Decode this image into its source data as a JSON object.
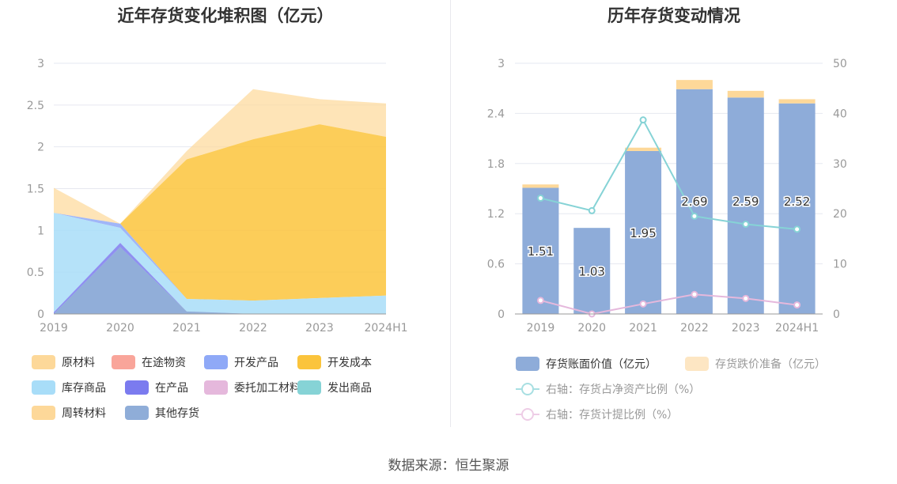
{
  "source": "数据来源：恒生聚源",
  "chart_data": [
    {
      "type": "area",
      "title": "近年存货变化堆积图（亿元）",
      "categories": [
        "2019",
        "2020",
        "2021",
        "2022",
        "2023",
        "2024H1"
      ],
      "y_ticks": [
        "0",
        "0.5",
        "1",
        "1.5",
        "2",
        "2.5",
        "3"
      ],
      "ylim": [
        0,
        3
      ],
      "stacked": true,
      "series": [
        {
          "name": "原材料",
          "color": "#fdd899",
          "values": [
            0.3,
            0.0,
            0.1,
            0.6,
            0.3,
            0.4
          ]
        },
        {
          "name": "在途物资",
          "color": "#f9a59a",
          "values": [
            0,
            0,
            0,
            0,
            0,
            0
          ]
        },
        {
          "name": "开发产品",
          "color": "#8fa9f7",
          "values": [
            0.0,
            0.05,
            0.0,
            0.0,
            0.0,
            0.0
          ]
        },
        {
          "name": "开发成本",
          "color": "#fbc43c",
          "values": [
            0.0,
            0.0,
            1.67,
            1.93,
            2.08,
            1.9
          ]
        },
        {
          "name": "库存商品",
          "color": "#a8ddf8",
          "values": [
            1.19,
            0.18,
            0.15,
            0.16,
            0.19,
            0.22
          ]
        },
        {
          "name": "在产品",
          "color": "#7b7bef",
          "values": [
            0.02,
            0.05,
            0.0,
            0.0,
            0.0,
            0.0
          ]
        },
        {
          "name": "委托加工材料",
          "color": "#e5b8dc",
          "values": [
            0,
            0,
            0,
            0,
            0,
            0
          ]
        },
        {
          "name": "发出商品",
          "color": "#86d3d6",
          "values": [
            0,
            0,
            0,
            0,
            0,
            0
          ]
        },
        {
          "name": "周转材料",
          "color": "#fdd899",
          "values": [
            0,
            0,
            0,
            0,
            0,
            0
          ]
        },
        {
          "name": "其他存货",
          "color": "#8fadd8",
          "values": [
            0.0,
            0.8,
            0.03,
            0.0,
            0.0,
            0.0
          ]
        }
      ]
    },
    {
      "type": "bar",
      "title": "历年存货变动情况",
      "categories": [
        "2019",
        "2020",
        "2021",
        "2022",
        "2023",
        "2024H1"
      ],
      "y_ticks": [
        "0",
        "0.6",
        "1.2",
        "1.8",
        "2.4",
        "3"
      ],
      "ylim": [
        0,
        3
      ],
      "y2_ticks": [
        "0",
        "10",
        "20",
        "30",
        "40",
        "50"
      ],
      "y2lim": [
        0,
        50
      ],
      "bar_series": [
        {
          "name": "存货账面价值（亿元）",
          "color": "#8eacd9",
          "values": [
            1.51,
            1.03,
            1.95,
            2.69,
            2.59,
            2.52
          ],
          "labels": [
            "1.51",
            "1.03",
            "1.95",
            "2.69",
            "2.59",
            "2.52"
          ]
        },
        {
          "name": "存货跌价准备（亿元）",
          "color": "#fdd899",
          "legend_color": "#fde6c3",
          "values": [
            0.04,
            0.0,
            0.04,
            0.11,
            0.08,
            0.05
          ]
        }
      ],
      "line_series": [
        {
          "name": "右轴：存货占净资产比例（%）",
          "color": "#86d3d6",
          "legend_color": "#a8dfe2",
          "values": [
            23.1,
            20.6,
            38.7,
            19.5,
            17.9,
            16.9
          ]
        },
        {
          "name": "右轴：存货计提比例（%）",
          "color": "#e5b8dc",
          "legend_color": "#eecde6",
          "values": [
            2.7,
            0.0,
            2.0,
            3.9,
            3.1,
            1.8
          ]
        }
      ]
    }
  ]
}
